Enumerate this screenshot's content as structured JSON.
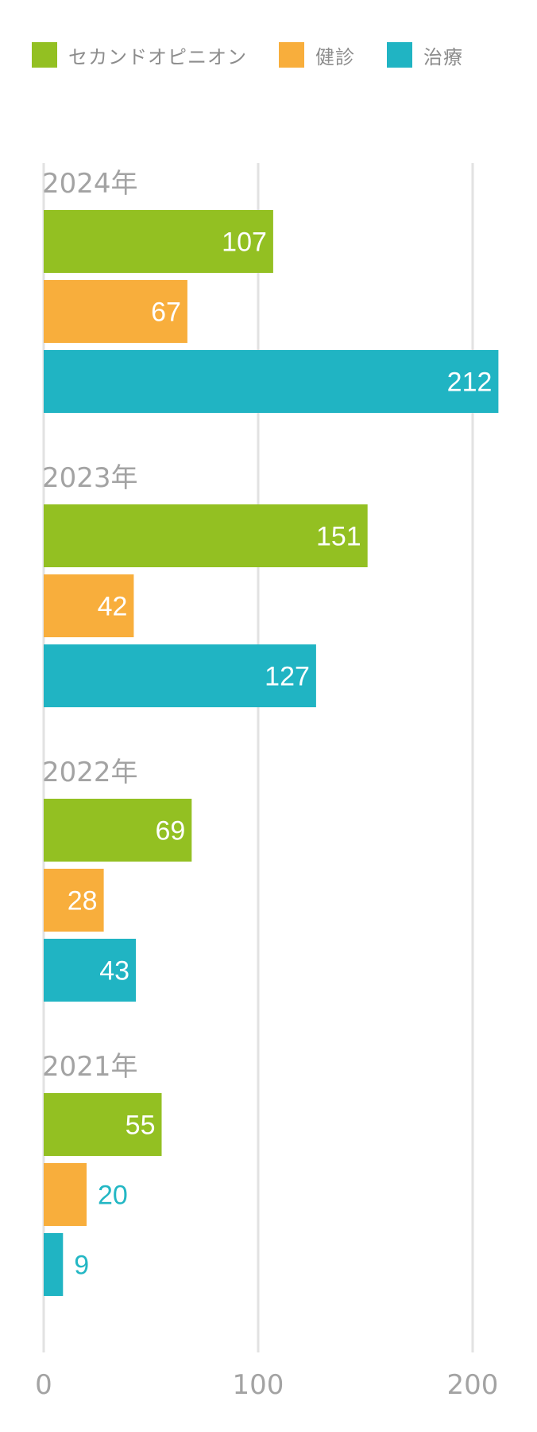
{
  "legend": [
    {
      "label": "セカンドオピニオン",
      "color": "#93c022"
    },
    {
      "label": "健診",
      "color": "#f8ae3c"
    },
    {
      "label": "治療",
      "color": "#20b4c3"
    }
  ],
  "chart_data": {
    "type": "bar",
    "orientation": "horizontal",
    "categories": [
      "2024年",
      "2023年",
      "2022年",
      "2021年"
    ],
    "series": [
      {
        "name": "セカンドオピニオン",
        "color": "#93c022",
        "values": [
          107,
          151,
          69,
          55
        ]
      },
      {
        "name": "健診",
        "color": "#f8ae3c",
        "values": [
          67,
          42,
          28,
          20
        ]
      },
      {
        "name": "治療",
        "color": "#20b4c3",
        "values": [
          212,
          127,
          43,
          9
        ]
      }
    ],
    "xlim": [
      0,
      200
    ],
    "xticks": [
      0,
      100,
      200
    ],
    "grid": true,
    "legend_position": "top-left",
    "data_labels": true
  }
}
